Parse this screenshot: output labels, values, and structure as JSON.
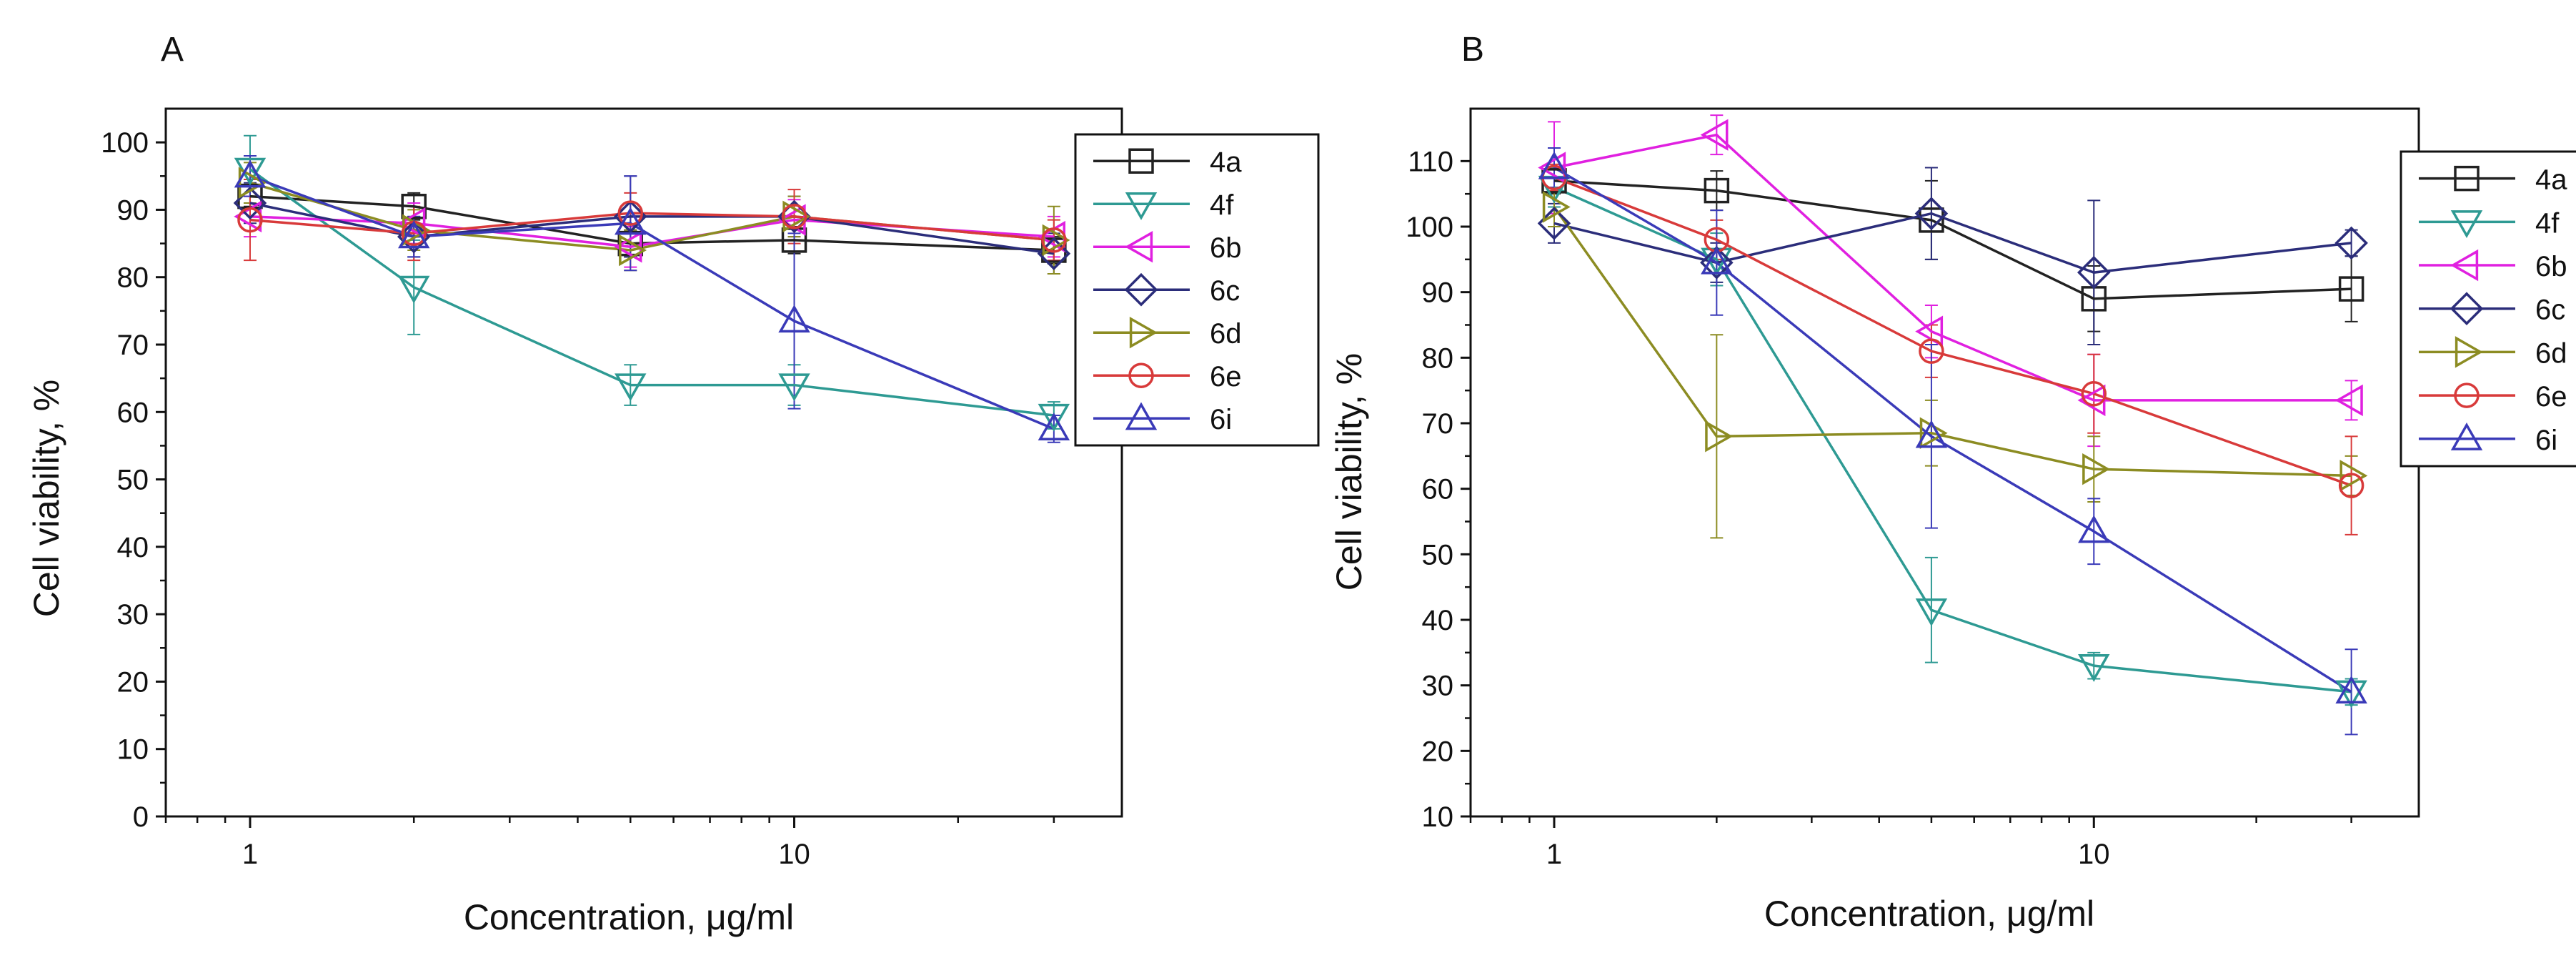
{
  "chart_data": [
    {
      "type": "line",
      "panel_label": "A",
      "title": "",
      "xlabel": "Concentration, μg/ml",
      "ylabel": "Cell viability, %",
      "x_scale": "log",
      "xlim": [
        0.7,
        40
      ],
      "ylim": [
        0,
        105
      ],
      "xticks": [
        1,
        10
      ],
      "xtick_labels": [
        "1",
        "10"
      ],
      "yticks": [
        0,
        10,
        20,
        30,
        40,
        50,
        60,
        70,
        80,
        90,
        100
      ],
      "ytick_labels": [
        "0",
        "10",
        "20",
        "30",
        "40",
        "50",
        "60",
        "70",
        "80",
        "90",
        "100"
      ],
      "grid": false,
      "legend_position": "top-right",
      "x": [
        1,
        2,
        5,
        10,
        30
      ],
      "series": [
        {
          "name": "4a",
          "marker": "square",
          "color": "#222222",
          "values": [
            92,
            90.5,
            85,
            85.5,
            84
          ],
          "errors": [
            1.5,
            2,
            2,
            2,
            2
          ]
        },
        {
          "name": "4f",
          "marker": "triangle-down",
          "color": "#2e9a93",
          "values": [
            96,
            78.5,
            64,
            64,
            59.5
          ],
          "errors": [
            5,
            7,
            3,
            3,
            2
          ]
        },
        {
          "name": "6b",
          "marker": "triangle-left",
          "color": "#e020e0",
          "values": [
            89,
            88,
            84.5,
            88.5,
            86
          ],
          "errors": [
            3,
            3,
            3,
            3,
            3
          ]
        },
        {
          "name": "6c",
          "marker": "diamond",
          "color": "#2b2d7a",
          "values": [
            91,
            86,
            89,
            89,
            83.5
          ],
          "errors": [
            3,
            3,
            6,
            3,
            3
          ]
        },
        {
          "name": "6d",
          "marker": "triangle-right",
          "color": "#8c8c22",
          "values": [
            94,
            87,
            84,
            89,
            85.5
          ],
          "errors": [
            3,
            3,
            3,
            3,
            5
          ]
        },
        {
          "name": "6e",
          "marker": "circle",
          "color": "#d83a3a",
          "values": [
            88.5,
            86.5,
            89.5,
            89,
            85.5
          ],
          "errors": [
            6,
            4,
            3,
            4,
            3
          ]
        },
        {
          "name": "6i",
          "marker": "triangle-up",
          "color": "#3a3ab8",
          "values": [
            95,
            86,
            88,
            73.5,
            57.5
          ],
          "errors": [
            3,
            3,
            7,
            13,
            2
          ]
        }
      ]
    },
    {
      "type": "line",
      "panel_label": "B",
      "title": "",
      "xlabel": "Concentration, μg/ml",
      "ylabel": "Cell viability, %",
      "x_scale": "log",
      "xlim": [
        0.7,
        40
      ],
      "ylim": [
        10,
        118
      ],
      "xticks": [
        1,
        10
      ],
      "xtick_labels": [
        "1",
        "10"
      ],
      "yticks": [
        10,
        20,
        30,
        40,
        50,
        60,
        70,
        80,
        90,
        100,
        110
      ],
      "ytick_labels": [
        "10",
        "20",
        "30",
        "40",
        "50",
        "60",
        "70",
        "80",
        "90",
        "100",
        "110"
      ],
      "grid": false,
      "legend_position": "top-right",
      "x": [
        1,
        2,
        5,
        10,
        30
      ],
      "series": [
        {
          "name": "4a",
          "marker": "square",
          "color": "#222222",
          "values": [
            107,
            105.5,
            101,
            89,
            90.5
          ],
          "errors": [
            2,
            3,
            6,
            5,
            5
          ]
        },
        {
          "name": "4f",
          "marker": "triangle-down",
          "color": "#2e9a93",
          "values": [
            106,
            95,
            41.5,
            33,
            29
          ],
          "errors": [
            3,
            4,
            8,
            2,
            2
          ]
        },
        {
          "name": "6b",
          "marker": "triangle-left",
          "color": "#e020e0",
          "values": [
            109,
            114,
            84,
            73.5,
            73.5
          ],
          "errors": [
            7,
            3,
            4,
            7,
            3
          ]
        },
        {
          "name": "6c",
          "marker": "diamond",
          "color": "#2b2d7a",
          "values": [
            100.5,
            94.5,
            102,
            93,
            97.5
          ],
          "errors": [
            3,
            3,
            7,
            11,
            2
          ]
        },
        {
          "name": "6d",
          "marker": "triangle-right",
          "color": "#8c8c22",
          "values": [
            103,
            68,
            68.5,
            63,
            62
          ],
          "errors": [
            3,
            15.5,
            5,
            5,
            3
          ]
        },
        {
          "name": "6e",
          "marker": "circle",
          "color": "#d83a3a",
          "values": [
            107.5,
            98,
            81,
            74.5,
            60.5
          ],
          "errors": [
            2,
            3,
            4,
            6,
            7.5
          ]
        },
        {
          "name": "6i",
          "marker": "triangle-up",
          "color": "#3a3ab8",
          "values": [
            109,
            94.5,
            68,
            53.5,
            29
          ],
          "errors": [
            3,
            8,
            14,
            5,
            6.5
          ]
        }
      ]
    }
  ]
}
